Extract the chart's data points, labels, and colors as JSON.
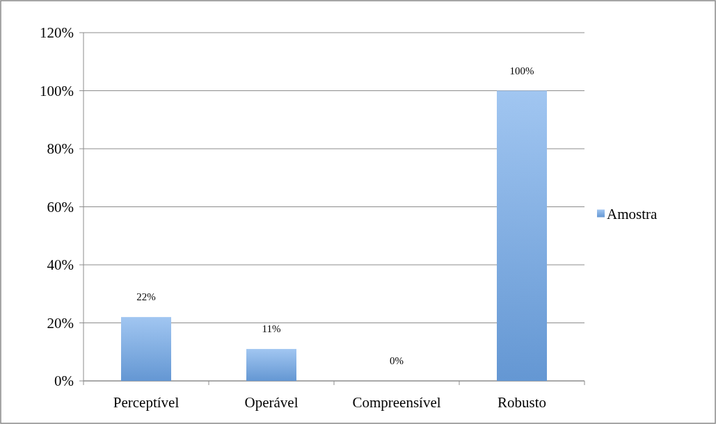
{
  "chart_data": {
    "type": "bar",
    "categories": [
      "Perceptível",
      "Operável",
      "Compreensível",
      "Robusto"
    ],
    "series": [
      {
        "name": "Amostra",
        "color": "#6fa8ea",
        "values": [
          22,
          11,
          0,
          100
        ],
        "value_labels": [
          "22%",
          "11%",
          "0%",
          "100%"
        ]
      }
    ],
    "ylim": [
      0,
      120
    ],
    "yticks": [
      {
        "value": 0,
        "label": "0%"
      },
      {
        "value": 20,
        "label": "20%"
      },
      {
        "value": 40,
        "label": "40%"
      },
      {
        "value": 60,
        "label": "60%"
      },
      {
        "value": 80,
        "label": "80%"
      },
      {
        "value": 100,
        "label": "100%"
      },
      {
        "value": 120,
        "label": "120%"
      }
    ],
    "grid": "y",
    "legend": "right"
  }
}
